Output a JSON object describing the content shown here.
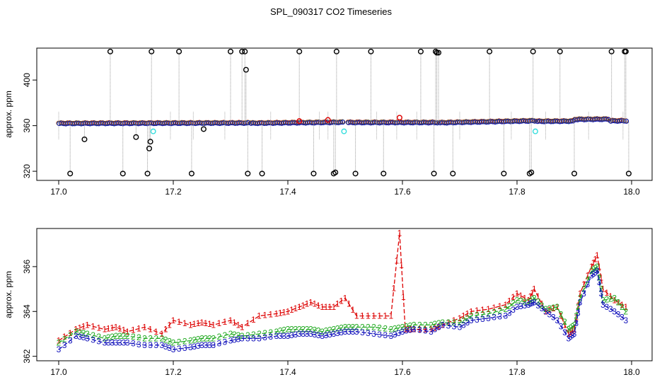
{
  "title": "SPL_090317  CO2 Timeseries",
  "chart_data": [
    {
      "type": "scatter",
      "panel": "top",
      "ylabel": "approx. ppm",
      "xlim": [
        17.0,
        18.0
      ],
      "ylim": [
        312,
        428
      ],
      "xticks": [
        "17.0",
        "17.2",
        "17.4",
        "17.6",
        "17.8",
        "18.0"
      ],
      "yticks": [
        "320",
        "360",
        "400"
      ],
      "baseline_segments": [
        {
          "x0": 17.0,
          "x1": 17.33,
          "y0": 362.2,
          "y1": 362.6
        },
        {
          "x0": 17.335,
          "x1": 17.495,
          "y0": 362.4,
          "y1": 363.2
        },
        {
          "x0": 17.505,
          "x1": 17.66,
          "y0": 363.0,
          "y1": 363.0
        },
        {
          "x0": 17.665,
          "x1": 17.83,
          "y0": 362.8,
          "y1": 364.5
        },
        {
          "x0": 17.835,
          "x1": 17.99,
          "y0": 364.0,
          "y1": 364.5
        }
      ],
      "series": [
        {
          "name": "black",
          "color": "#000000",
          "x": [
            17.02,
            17.045,
            17.09,
            17.112,
            17.135,
            17.155,
            17.158,
            17.16,
            17.162,
            17.21,
            17.232,
            17.253,
            17.3,
            17.32,
            17.325,
            17.327,
            17.33,
            17.355,
            17.42,
            17.445,
            17.48,
            17.483,
            17.485,
            17.518,
            17.545,
            17.567,
            17.632,
            17.655,
            17.658,
            17.66,
            17.663,
            17.688,
            17.752,
            17.777,
            17.822,
            17.825,
            17.828,
            17.875,
            17.9,
            17.965,
            17.988,
            17.99,
            17.995
          ],
          "y": [
            318,
            348,
            425,
            318,
            350,
            318,
            340,
            346,
            425,
            425,
            318,
            357,
            425,
            425,
            425,
            409,
            318,
            318,
            425,
            318,
            318,
            319,
            425,
            318,
            425,
            318,
            425,
            318,
            425,
            424,
            424,
            318,
            425,
            318,
            318,
            319,
            425,
            425,
            318,
            425,
            425,
            425,
            318
          ]
        },
        {
          "name": "cyan",
          "color": "#33dddd",
          "x": [
            17.165,
            17.498,
            17.832
          ],
          "y": [
            355,
            355,
            355
          ]
        },
        {
          "name": "red",
          "color": "#dd0000",
          "x": [
            17.595,
            17.42,
            17.47
          ],
          "y": [
            367,
            364,
            365
          ]
        }
      ]
    },
    {
      "type": "line",
      "panel": "bottom",
      "ylabel": "approx. ppm",
      "xlim": [
        17.0,
        18.0
      ],
      "ylim": [
        361.8,
        367.7
      ],
      "xticks": [
        "17.0",
        "17.2",
        "17.4",
        "17.6",
        "17.8",
        "18.0"
      ],
      "yticks": [
        "362",
        "364",
        "366"
      ],
      "series": [
        {
          "name": "1",
          "color": "#dd0000",
          "marker": "1",
          "x": [
            17.0,
            17.03,
            17.05,
            17.08,
            17.1,
            17.12,
            17.15,
            17.18,
            17.2,
            17.23,
            17.25,
            17.27,
            17.3,
            17.32,
            17.35,
            17.38,
            17.4,
            17.42,
            17.44,
            17.46,
            17.48,
            17.5,
            17.52,
            17.55,
            17.58,
            17.595,
            17.605,
            17.62,
            17.65,
            17.67,
            17.7,
            17.72,
            17.75,
            17.78,
            17.8,
            17.82,
            17.83,
            17.85,
            17.87,
            17.89,
            17.9,
            17.91,
            17.93,
            17.94,
            17.95,
            17.97,
            17.99
          ],
          "y": [
            362.7,
            363.2,
            363.4,
            363.2,
            363.3,
            363.1,
            363.3,
            363.0,
            363.6,
            363.4,
            363.5,
            363.4,
            363.6,
            363.3,
            363.8,
            363.9,
            364.0,
            364.2,
            364.4,
            364.2,
            364.2,
            364.6,
            363.8,
            363.8,
            363.8,
            367.5,
            363.2,
            363.2,
            363.2,
            363.4,
            363.7,
            364.0,
            364.1,
            364.3,
            364.8,
            364.5,
            365.0,
            364.0,
            364.2,
            363.0,
            363.2,
            364.8,
            366.0,
            366.5,
            365.0,
            364.5,
            364.2
          ]
        },
        {
          "name": "2",
          "color": "#22aa22",
          "marker": "2",
          "x": [
            17.0,
            17.03,
            17.05,
            17.08,
            17.1,
            17.12,
            17.15,
            17.18,
            17.2,
            17.23,
            17.25,
            17.27,
            17.3,
            17.32,
            17.35,
            17.38,
            17.4,
            17.42,
            17.44,
            17.46,
            17.48,
            17.5,
            17.52,
            17.55,
            17.58,
            17.6,
            17.62,
            17.65,
            17.67,
            17.7,
            17.72,
            17.75,
            17.78,
            17.8,
            17.82,
            17.83,
            17.85,
            17.87,
            17.89,
            17.9,
            17.91,
            17.93,
            17.94,
            17.95,
            17.97,
            17.99
          ],
          "y": [
            362.6,
            363.1,
            363.0,
            362.8,
            362.9,
            362.9,
            362.8,
            362.8,
            362.6,
            362.7,
            362.8,
            362.8,
            363.0,
            362.9,
            363.0,
            363.1,
            363.2,
            363.2,
            363.2,
            363.1,
            363.2,
            363.3,
            363.3,
            363.3,
            363.2,
            363.3,
            363.4,
            363.4,
            363.5,
            363.5,
            363.8,
            363.9,
            364.1,
            364.5,
            364.4,
            364.6,
            364.1,
            364.2,
            363.2,
            363.4,
            364.6,
            365.8,
            366.0,
            364.5,
            364.6,
            364.0
          ]
        },
        {
          "name": "3",
          "color": "#1111bb",
          "marker": "3",
          "x": [
            17.0,
            17.03,
            17.05,
            17.08,
            17.1,
            17.12,
            17.15,
            17.18,
            17.2,
            17.23,
            17.25,
            17.27,
            17.3,
            17.32,
            17.35,
            17.38,
            17.4,
            17.42,
            17.44,
            17.46,
            17.48,
            17.5,
            17.52,
            17.55,
            17.58,
            17.6,
            17.62,
            17.65,
            17.67,
            17.7,
            17.72,
            17.75,
            17.78,
            17.8,
            17.82,
            17.83,
            17.85,
            17.87,
            17.89,
            17.9,
            17.91,
            17.93,
            17.94,
            17.95,
            17.97,
            17.99
          ],
          "y": [
            362.3,
            362.9,
            362.8,
            362.6,
            362.6,
            362.6,
            362.5,
            362.5,
            362.3,
            362.4,
            362.5,
            362.5,
            362.7,
            362.8,
            362.8,
            362.9,
            362.9,
            363.0,
            363.0,
            362.9,
            363.0,
            363.1,
            363.1,
            363.0,
            362.9,
            363.1,
            363.2,
            363.1,
            363.4,
            363.3,
            363.6,
            363.7,
            363.8,
            364.2,
            364.3,
            364.4,
            364.0,
            363.6,
            362.8,
            363.0,
            364.4,
            365.6,
            365.8,
            364.3,
            364.0,
            363.6
          ]
        }
      ]
    }
  ]
}
